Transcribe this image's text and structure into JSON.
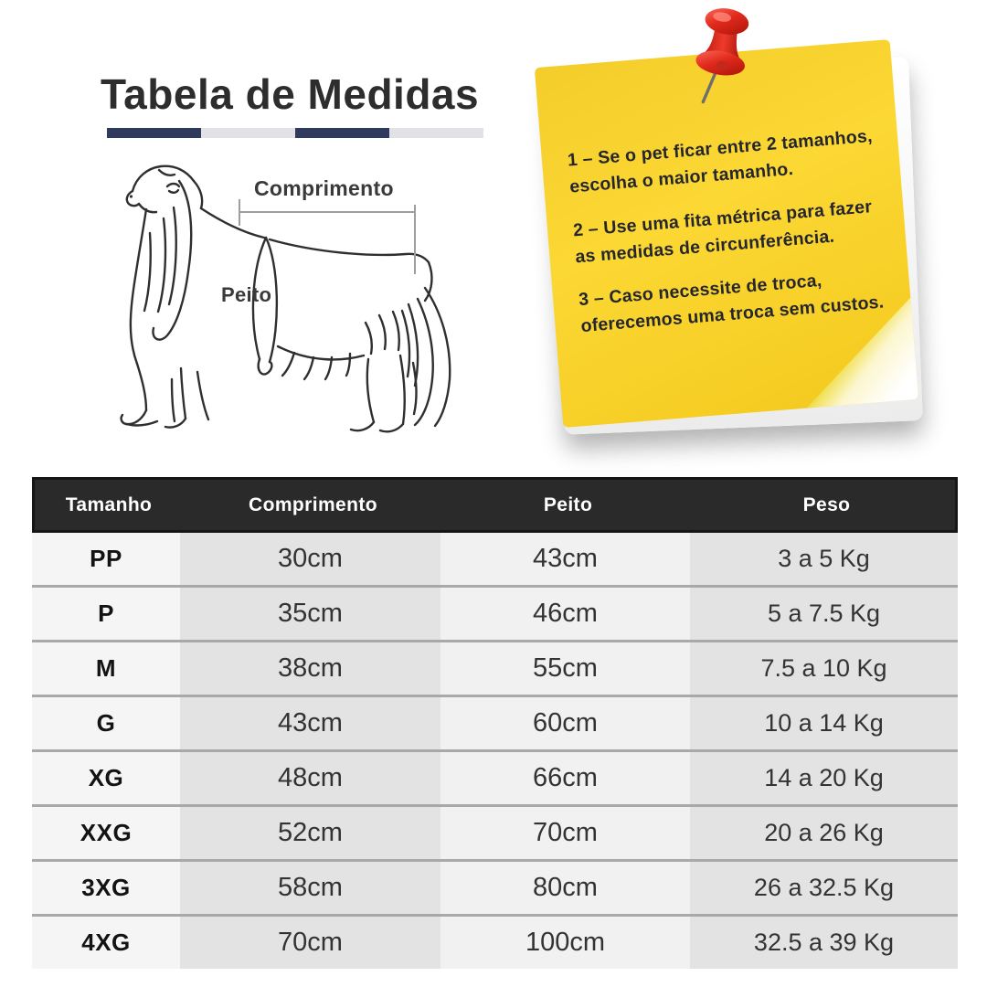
{
  "heading": {
    "title": "Tabela de Medidas"
  },
  "diagram": {
    "length_label": "Comprimento",
    "chest_label": "Peito"
  },
  "sticky_note": {
    "tips": [
      "1 – Se o pet ficar entre 2 tamanhos,\nescolha o maior tamanho.",
      "2 – Use uma fita métrica para fazer\nas medidas de circunferência.",
      "3 – Caso necessite de troca,\noferecemos uma troca sem custos."
    ]
  },
  "chart_data": {
    "type": "table",
    "title": "Tabela de Medidas",
    "columns": [
      "Tamanho",
      "Comprimento",
      "Peito",
      "Peso"
    ],
    "rows": [
      [
        "PP",
        "30cm",
        "43cm",
        "3 a 5 Kg"
      ],
      [
        "P",
        "35cm",
        "46cm",
        "5 a 7.5 Kg"
      ],
      [
        "M",
        "38cm",
        "55cm",
        "7.5 a 10 Kg"
      ],
      [
        "G",
        "43cm",
        "60cm",
        "10 a 14 Kg"
      ],
      [
        "XG",
        "48cm",
        "66cm",
        "14 a 20 Kg"
      ],
      [
        "XXG",
        "52cm",
        "70cm",
        "20 a 26 Kg"
      ],
      [
        "3XG",
        "58cm",
        "80cm",
        "26 a 32.5 Kg"
      ],
      [
        "4XG",
        "70cm",
        "100cm",
        "32.5 a 39 Kg"
      ]
    ]
  },
  "colors": {
    "accent_navy": "#2f3a5c",
    "underline_gray": "#e2e2e6",
    "note_yellow": "#fbd42c",
    "pin_red": "#d92318",
    "header_bg": "#2a2a2a",
    "row_divider": "#a9a9a9"
  }
}
